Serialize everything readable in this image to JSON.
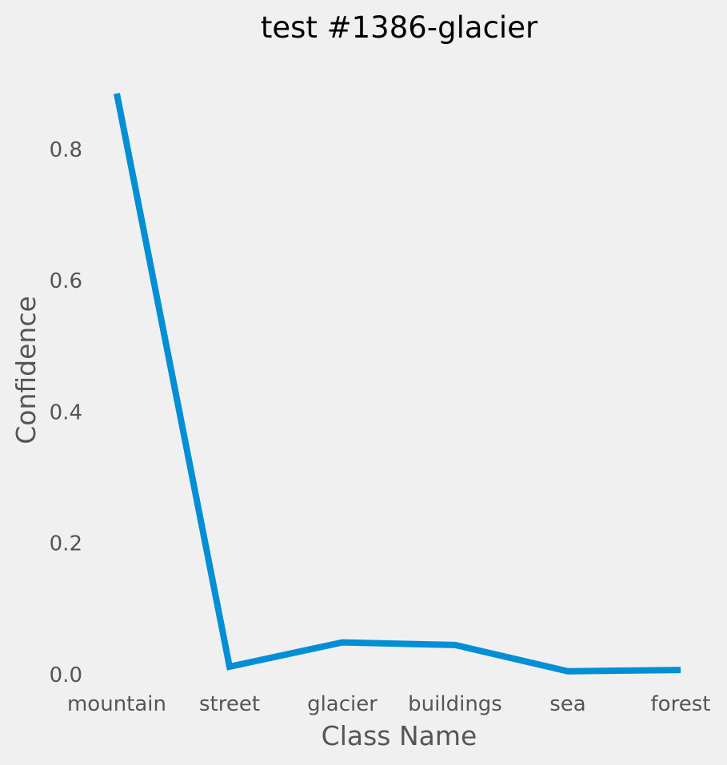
{
  "chart_data": {
    "type": "line",
    "title": "test #1386-glacier",
    "xlabel": "Class Name",
    "ylabel": "Confidence",
    "categories": [
      "mountain",
      "street",
      "glacier",
      "buildings",
      "sea",
      "forest"
    ],
    "series": [
      {
        "values": [
          0.885,
          0.012,
          0.049,
          0.045,
          0.005,
          0.007
        ]
      }
    ],
    "yticks": [
      "0.0",
      "0.2",
      "0.4",
      "0.6",
      "0.8"
    ],
    "ylim": [
      -0.044,
      0.93
    ],
    "grid": false,
    "colors": {
      "line": "#008fd5",
      "background": "#f0f0f0",
      "text": "#555555",
      "title": "#000000"
    }
  }
}
